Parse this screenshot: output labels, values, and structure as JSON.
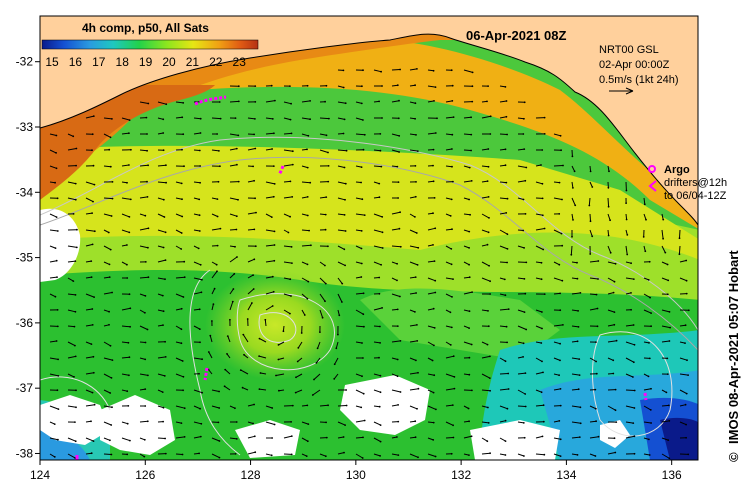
{
  "header": {
    "composite_label": "4h comp, p50, All Sats",
    "datetime": "06-Apr-2021 08Z"
  },
  "colorbar": {
    "ticks": [
      "15",
      "16",
      "17",
      "18",
      "19",
      "20",
      "21",
      "22",
      "23"
    ],
    "colors": [
      "#0a1a8a",
      "#1450d2",
      "#2a9ae0",
      "#1fc8c0",
      "#22d24a",
      "#8ee61e",
      "#e6e614",
      "#f0a014",
      "#e05a14",
      "#b43214"
    ]
  },
  "current_info": {
    "line1": "NRT00 GSL",
    "line2": "02-Apr 00:00Z",
    "line3": "0.5m/s (1kt 24h)"
  },
  "argo_legend": {
    "label": "Argo",
    "drifters_line1": "drifters@12h",
    "drifters_line2": "to 06/04-12Z",
    "color": "#ff00ff"
  },
  "credit": "IMOS 08-Apr-2021 05:07 Hobart",
  "copyright": "©",
  "axes": {
    "x_ticks": [
      "124",
      "126",
      "128",
      "130",
      "132",
      "134",
      "136"
    ],
    "y_ticks": [
      "-32",
      "-33",
      "-34",
      "-35",
      "-36",
      "-37",
      "-38"
    ],
    "x_range": [
      124,
      136.5
    ],
    "y_range": [
      -38.1,
      -31.3
    ]
  },
  "colors": {
    "land": "#ffd09c",
    "no_data": "#ffffff",
    "arrows": "#000000",
    "contours": "#c8c8c8"
  }
}
